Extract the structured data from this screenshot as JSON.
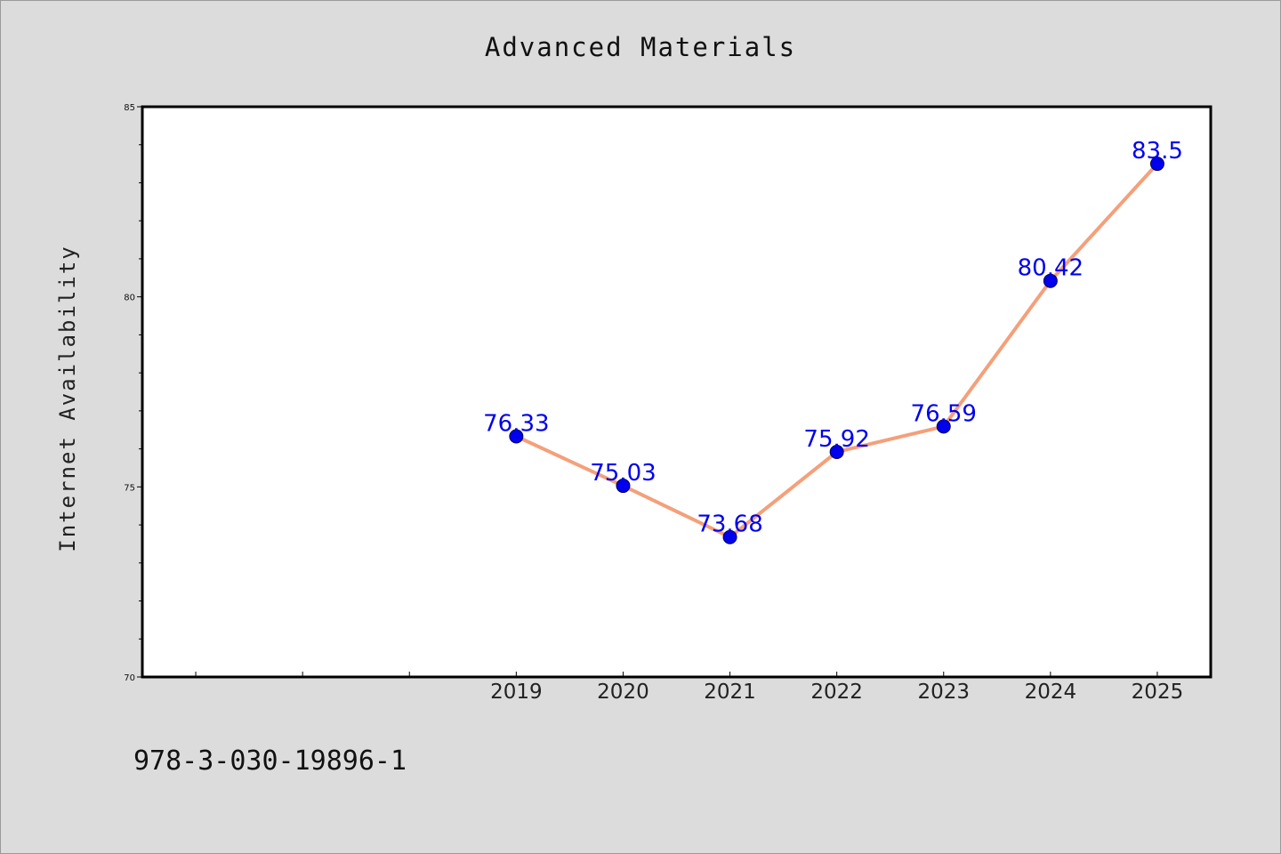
{
  "chart_data": {
    "type": "line",
    "title": "Advanced Materials",
    "xlabel": "",
    "ylabel": "Internet Availability",
    "categories": [
      "2019",
      "2020",
      "2021",
      "2022",
      "2023",
      "2024",
      "2025"
    ],
    "series": [
      {
        "values": [
          76.33,
          75.03,
          73.68,
          75.92,
          76.59,
          80.42,
          83.5
        ],
        "data_labels": [
          "76.33",
          "75.03",
          "73.68",
          "75.92",
          "76.59",
          "80.42",
          "83.5"
        ]
      }
    ],
    "ylim": [
      70,
      85
    ],
    "y_ticks": [
      "70",
      "75",
      "80",
      "85"
    ],
    "x_range": [
      2015.5,
      2025.5
    ],
    "grid": false,
    "line_color": "#f4a07a",
    "marker_color": "#0000ee",
    "label_color": "#0000ee"
  },
  "footer": {
    "isbn": "978-3-030-19896-1"
  }
}
